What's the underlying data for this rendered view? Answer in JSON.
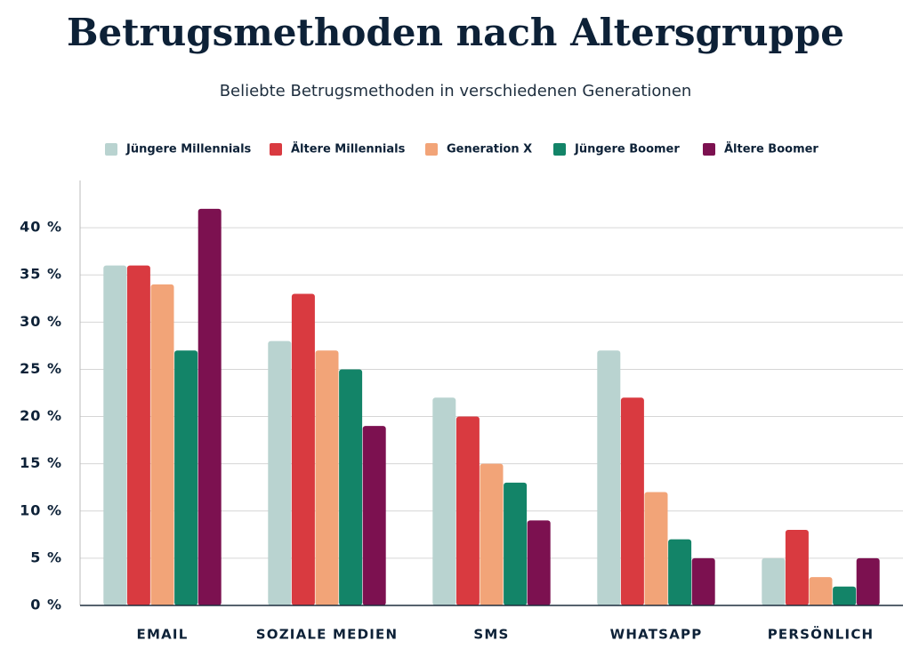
{
  "chart_data": {
    "type": "bar",
    "title": "Betrugsmethoden nach Altersgruppe",
    "subtitle": "Beliebte Betrugsmethoden in verschiedenen Generationen",
    "categories": [
      "EMAIL",
      "SOZIALE MEDIEN",
      "SMS",
      "WHATSAPP",
      "PERSÖNLICH"
    ],
    "series": [
      {
        "name": "Jüngere Millennials",
        "color": "#b9d3d0",
        "values": [
          36,
          28,
          22,
          27,
          5
        ]
      },
      {
        "name": "Ältere Millennials",
        "color": "#d93a40",
        "values": [
          36,
          33,
          20,
          22,
          8
        ]
      },
      {
        "name": "Generation X",
        "color": "#f2a478",
        "values": [
          34,
          27,
          15,
          12,
          3
        ]
      },
      {
        "name": "Jüngere Boomer",
        "color": "#138468",
        "values": [
          27,
          25,
          13,
          7,
          2
        ]
      },
      {
        "name": "Ältere Boomer",
        "color": "#7c1150",
        "values": [
          42,
          19,
          9,
          5,
          5
        ]
      }
    ],
    "ylim": [
      0,
      45
    ],
    "yticks": [
      {
        "value": 0,
        "label": "0 %"
      },
      {
        "value": 5,
        "label": "5 %"
      },
      {
        "value": 10,
        "label": "10 %"
      },
      {
        "value": 15,
        "label": "15 %"
      },
      {
        "value": 20,
        "label": "20 %"
      },
      {
        "value": 25,
        "label": "25 %"
      },
      {
        "value": 30,
        "label": "30 %"
      },
      {
        "value": 35,
        "label": "35 %"
      },
      {
        "value": 40,
        "label": "40 %"
      }
    ],
    "grid": true,
    "legend": "top"
  }
}
